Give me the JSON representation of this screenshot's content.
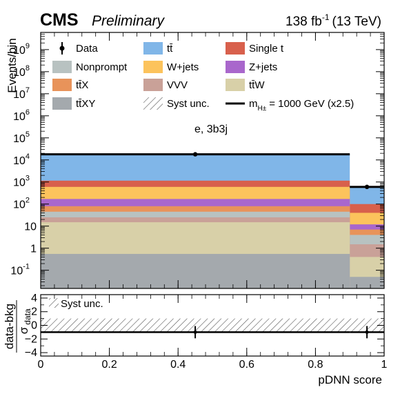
{
  "header": {
    "experiment": "CMS",
    "status": "Preliminary",
    "lumi_value": "138 fb",
    "lumi_exp": "-1",
    "energy": "(13 TeV)"
  },
  "chart_data": {
    "type": "bar",
    "stacked": true,
    "log_y": true,
    "channel_label": "e, 3b3j",
    "xlabel": "pDNN score",
    "ylabel": "Events/bin",
    "xlim": [
      0,
      1
    ],
    "ylim": [
      0.015,
      6000000000
    ],
    "x_ticks": [
      0,
      0.2,
      0.4,
      0.6,
      0.8,
      1
    ],
    "x_tick_labels": [
      "0",
      "0.2",
      "0.4",
      "0.6",
      "0.8",
      "1"
    ],
    "y_ticks": [
      0.1,
      1,
      10,
      100,
      1000,
      10000,
      100000,
      1000000,
      10000000,
      100000000,
      1000000000
    ],
    "y_tick_labels": [
      {
        "base": "10",
        "exp": "-1"
      },
      {
        "base": "1",
        "exp": ""
      },
      {
        "base": "10",
        "exp": ""
      },
      {
        "base": "10",
        "exp": "2"
      },
      {
        "base": "10",
        "exp": "3"
      },
      {
        "base": "10",
        "exp": "4"
      },
      {
        "base": "10",
        "exp": "5"
      },
      {
        "base": "10",
        "exp": "6"
      },
      {
        "base": "10",
        "exp": "7"
      },
      {
        "base": "10",
        "exp": "8"
      },
      {
        "base": "10",
        "exp": "9"
      }
    ],
    "bins": [
      [
        0,
        0.9
      ],
      [
        0.9,
        1.0
      ]
    ],
    "stack_tops": [
      {
        "name": "tt̄XY",
        "color": "#a4a9ad",
        "values": [
          0.55,
          0.05
        ]
      },
      {
        "name": "tt̄W",
        "color": "#d8d0a8",
        "values": [
          15,
          0.4
        ]
      },
      {
        "name": "VVV",
        "color": "#c9a198",
        "values": [
          25,
          1.5
        ]
      },
      {
        "name": "Nonprompt",
        "color": "#b8c2c1",
        "values": [
          45,
          4
        ]
      },
      {
        "name": "tt̄X",
        "color": "#e8935a",
        "values": [
          80,
          7
        ]
      },
      {
        "name": "Z+jets",
        "color": "#a967cc",
        "values": [
          170,
          12
        ]
      },
      {
        "name": "W+jets",
        "color": "#fcc35c",
        "values": [
          600,
          40
        ]
      },
      {
        "name": "Single t",
        "color": "#d8604c",
        "values": [
          1150,
          100
        ]
      },
      {
        "name": "tt̄",
        "color": "#80b6e8",
        "values": [
          18000,
          600
        ]
      }
    ],
    "data_points": [
      {
        "x": 0.45,
        "y": 18000
      },
      {
        "x": 0.95,
        "y": 600
      }
    ],
    "legend": [
      {
        "label": "Data",
        "kind": "marker"
      },
      {
        "label": "tt̄",
        "kind": "fill",
        "color": "#80b6e8"
      },
      {
        "label": "Single t",
        "kind": "fill",
        "color": "#d8604c"
      },
      {
        "label": "Nonprompt",
        "kind": "fill",
        "color": "#b8c2c1"
      },
      {
        "label": "W+jets",
        "kind": "fill",
        "color": "#fcc35c"
      },
      {
        "label": "Z+jets",
        "kind": "fill",
        "color": "#a967cc"
      },
      {
        "label": "tt̄X",
        "kind": "fill",
        "color": "#e8935a"
      },
      {
        "label": "VVV",
        "kind": "fill",
        "color": "#c9a198"
      },
      {
        "label": "tt̄W",
        "kind": "fill",
        "color": "#d8d0a8"
      },
      {
        "label": "tt̄XY",
        "kind": "fill",
        "color": "#a4a9ad"
      },
      {
        "label": "Syst unc.",
        "kind": "hatch"
      },
      {
        "label": "= 1000 GeV (x2.5)",
        "kind": "line",
        "prefix": "m",
        "subscript": "H±"
      }
    ],
    "ratio": {
      "ylabel_top": "data-bkg",
      "ylabel_bottom": "σ",
      "ylabel_bottom_sub": "data",
      "ylim": [
        -4.5,
        4.5
      ],
      "y_ticks": [
        -4,
        -2,
        0,
        2,
        4
      ],
      "y_tick_labels": [
        "−4",
        "−2",
        "0",
        "2",
        "4"
      ],
      "band": [
        -1,
        1
      ],
      "legend_label": "Syst unc.",
      "points": [
        {
          "x": 0.45,
          "y": -1.0,
          "err": 0.9
        },
        {
          "x": 0.95,
          "y": -1.0,
          "err": 0.9
        }
      ],
      "line_values": [
        -1.0,
        -1.0
      ]
    }
  }
}
